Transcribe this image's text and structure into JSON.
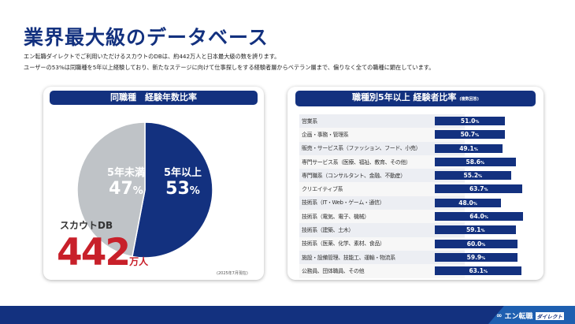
{
  "title": "業界最大級のデータベース",
  "description": [
    "エン転職ダイレクトでご利用いただけるスカウトのDBは、約442万人と日本最大級の数を誇ります。",
    "ユーザーの53%は同職種を5年以上経験しており、新たなステージに向けて仕事探しをする経験者層からベテラン層まで、偏りなく全ての職種に顕在しています。"
  ],
  "left_card": {
    "header": "同職種　経験年数比率",
    "pie": [
      {
        "label": "5年以上",
        "value": 53,
        "unit": "%",
        "color": "#13317f"
      },
      {
        "label": "5年未満",
        "value": 47,
        "unit": "%",
        "color": "#bfc3c7"
      }
    ],
    "db_label": "スカウトDB",
    "db_value": "442",
    "db_unit": "万人",
    "note": "(2025年7月現在)"
  },
  "right_card": {
    "header": "職種別5年以上 経験者比率",
    "header_note": "(複数回答)",
    "bar_color": "#13317f",
    "rows": [
      {
        "label": "営業系",
        "value": 51.0
      },
      {
        "label": "企画・事務・管理系",
        "value": 50.7
      },
      {
        "label": "販売・サービス系（ファッション、フード、小売）",
        "value": 49.1
      },
      {
        "label": "専門サービス系（医療、福祉、教育、その他）",
        "value": 58.6
      },
      {
        "label": "専門職系（コンサルタント、金融、不動産）",
        "value": 55.2
      },
      {
        "label": "クリエイティブ系",
        "value": 63.7
      },
      {
        "label": "技術系（IT・Web・ゲーム・通信）",
        "value": 48.0
      },
      {
        "label": "技術系（電気、電子、機械）",
        "value": 64.0
      },
      {
        "label": "技術系（建築、土木）",
        "value": 59.1
      },
      {
        "label": "技術系（医薬、化学、素材、食品）",
        "value": 60.0
      },
      {
        "label": "施設・設備管理、技能工、運輸・物流系",
        "value": 59.9
      },
      {
        "label": "公務員、団体職員、その他",
        "value": 63.1
      }
    ]
  },
  "footer": {
    "logo_main": "エン転職",
    "logo_tag": "ダイレクト"
  }
}
